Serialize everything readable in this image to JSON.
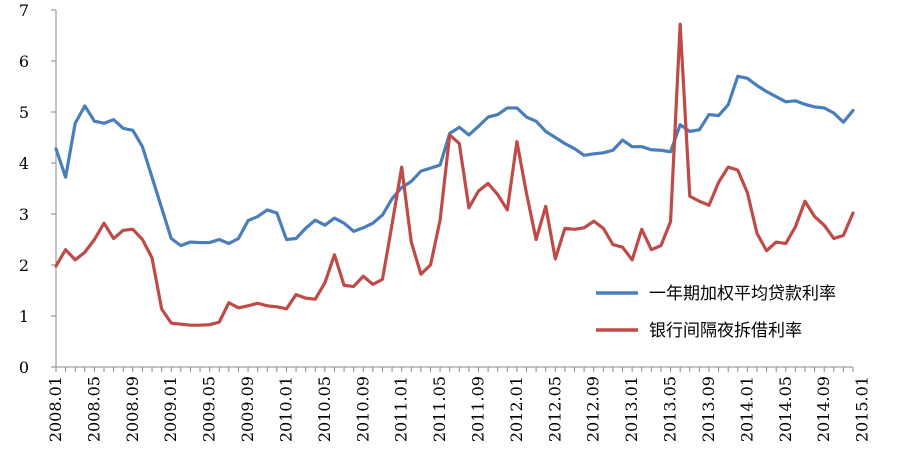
{
  "chart_data": {
    "type": "line",
    "title": "",
    "xlabel": "",
    "ylabel": "",
    "ylim": [
      0,
      7
    ],
    "yticks": [
      0,
      1,
      2,
      3,
      4,
      5,
      6,
      7
    ],
    "grid": false,
    "legend_position": "right",
    "x_tick_labels": [
      "2008.01",
      "2008.05",
      "2008.09",
      "2009.01",
      "2009.05",
      "2009.09",
      "2010.01",
      "2010.05",
      "2010.09",
      "2011.01",
      "2011.05",
      "2011.09",
      "2012.01",
      "2012.05",
      "2012.09",
      "2013.01",
      "2013.05",
      "2013.09",
      "2014.01",
      "2014.05",
      "2014.09",
      "2015.01"
    ],
    "series": [
      {
        "name": "一年期加权平均贷款利率",
        "color": "#4a7ebb",
        "values": [
          4.28,
          3.72,
          4.78,
          5.12,
          4.82,
          4.78,
          4.85,
          4.68,
          4.64,
          4.32,
          3.72,
          3.12,
          2.52,
          2.38,
          2.45,
          2.44,
          2.44,
          2.5,
          2.42,
          2.52,
          2.87,
          2.95,
          3.08,
          3.02,
          2.5,
          2.52,
          2.72,
          2.88,
          2.78,
          2.92,
          2.82,
          2.66,
          2.73,
          2.82,
          2.98,
          3.3,
          3.52,
          3.64,
          3.84,
          3.9,
          3.96,
          4.58,
          4.7,
          4.55,
          4.72,
          4.9,
          4.95,
          5.08,
          5.08,
          4.9,
          4.82,
          4.62,
          4.5,
          4.38,
          4.28,
          4.15,
          4.18,
          4.2,
          4.25,
          4.45,
          4.32,
          4.32,
          4.26,
          4.25,
          4.22,
          4.75,
          4.62,
          4.65,
          4.95,
          4.93,
          5.14,
          5.7,
          5.66,
          5.52,
          5.4,
          5.3,
          5.2,
          5.22,
          5.15,
          5.1,
          5.08,
          4.98,
          4.8,
          5.03
        ]
      },
      {
        "name": "银行间隔夜拆借利率",
        "color": "#be4b48",
        "values": [
          1.98,
          2.3,
          2.1,
          2.25,
          2.5,
          2.82,
          2.52,
          2.68,
          2.7,
          2.5,
          2.14,
          1.14,
          0.86,
          0.84,
          0.82,
          0.82,
          0.83,
          0.88,
          1.26,
          1.16,
          1.2,
          1.25,
          1.2,
          1.18,
          1.14,
          1.42,
          1.35,
          1.33,
          1.65,
          2.2,
          1.6,
          1.58,
          1.78,
          1.62,
          1.72,
          2.8,
          3.92,
          2.45,
          1.82,
          2.0,
          2.88,
          4.55,
          4.38,
          3.12,
          3.45,
          3.6,
          3.38,
          3.08,
          4.42,
          3.4,
          2.5,
          3.15,
          2.12,
          2.72,
          2.7,
          2.73,
          2.86,
          2.72,
          2.4,
          2.35,
          2.1,
          2.7,
          2.3,
          2.38,
          2.85,
          6.72,
          3.35,
          3.25,
          3.17,
          3.62,
          3.92,
          3.86,
          3.42,
          2.62,
          2.28,
          2.45,
          2.42,
          2.75,
          3.25,
          2.95,
          2.78,
          2.52,
          2.58,
          3.02
        ]
      }
    ]
  }
}
